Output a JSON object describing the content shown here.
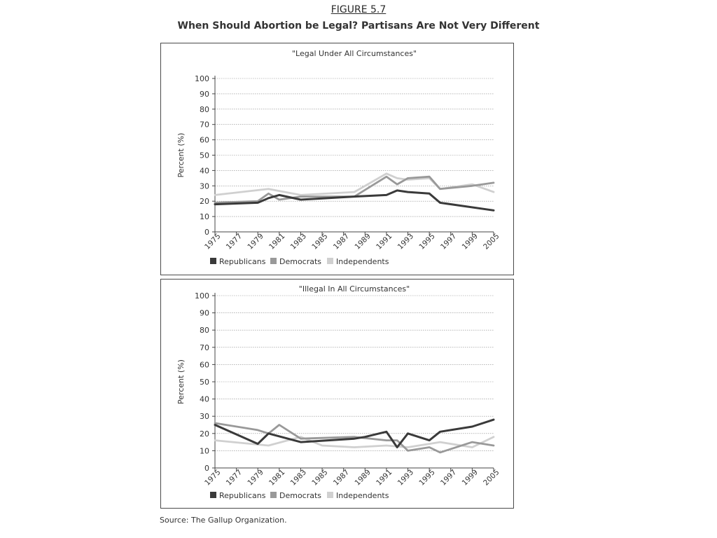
{
  "figure": {
    "label": "FIGURE 5.7",
    "title": "When Should Abortion be Legal? Partisans Are Not Very Different"
  },
  "source": "Source: The Gallup Organization.",
  "colors": {
    "Republicans": "#3a3a3a",
    "Democrats": "#999999",
    "Independents": "#d0d0d0",
    "grid": "#8a8a8a",
    "axis": "#444444"
  },
  "chart_data": [
    {
      "type": "line",
      "title": "\"Legal Under All Circumstances\"",
      "ylabel": "Percent (%)",
      "xlabel": "",
      "ylim": [
        0,
        100
      ],
      "yticks": [
        0,
        10,
        20,
        30,
        40,
        50,
        60,
        70,
        80,
        90,
        100
      ],
      "xticks": [
        "1975",
        "1977",
        "1979",
        "1981",
        "1983",
        "1985",
        "1987",
        "1989",
        "1991",
        "1993",
        "1995",
        "1997",
        "1999",
        "2005"
      ],
      "grid": true,
      "legend_position": "bottom",
      "series": [
        {
          "name": "Republicans",
          "x": [
            1975,
            1979,
            1980,
            1981,
            1983,
            1988,
            1991,
            1992,
            1993,
            1995,
            1996,
            2005
          ],
          "values": [
            18,
            19,
            22,
            24,
            21,
            23,
            24,
            27,
            26,
            25,
            19,
            14
          ]
        },
        {
          "name": "Democrats",
          "x": [
            1975,
            1979,
            1980,
            1981,
            1983,
            1988,
            1991,
            1992,
            1993,
            1995,
            1996,
            1999,
            2005
          ],
          "values": [
            19,
            20,
            25,
            21,
            23,
            23,
            36,
            31,
            35,
            36,
            28,
            30,
            32
          ]
        },
        {
          "name": "Independents",
          "x": [
            1975,
            1980,
            1983,
            1988,
            1991,
            1992,
            1993,
            1995,
            1996,
            1999,
            2005
          ],
          "values": [
            24,
            28,
            24,
            26,
            38,
            35,
            34,
            35,
            28,
            31,
            26
          ]
        }
      ]
    },
    {
      "type": "line",
      "title": "\"Illegal In All Circumstances\"",
      "ylabel": "Percent (%)",
      "xlabel": "",
      "ylim": [
        0,
        100
      ],
      "yticks": [
        0,
        10,
        20,
        30,
        40,
        50,
        60,
        70,
        80,
        90,
        100
      ],
      "xticks": [
        "1975",
        "1977",
        "1979",
        "1981",
        "1983",
        "1985",
        "1987",
        "1989",
        "1991",
        "1993",
        "1995",
        "1997",
        "1999",
        "2005"
      ],
      "grid": true,
      "legend_position": "bottom",
      "series": [
        {
          "name": "Republicans",
          "x": [
            1975,
            1979,
            1980,
            1983,
            1988,
            1989,
            1991,
            1992,
            1993,
            1995,
            1996,
            1999,
            2005
          ],
          "values": [
            25,
            14,
            20,
            15,
            17,
            18,
            21,
            12,
            20,
            16,
            21,
            24,
            28
          ]
        },
        {
          "name": "Democrats",
          "x": [
            1975,
            1979,
            1980,
            1981,
            1983,
            1988,
            1991,
            1992,
            1993,
            1995,
            1996,
            1999,
            2005
          ],
          "values": [
            26,
            22,
            20,
            25,
            17,
            18,
            16,
            16,
            10,
            12,
            9,
            15,
            13
          ]
        },
        {
          "name": "Independents",
          "x": [
            1975,
            1980,
            1983,
            1985,
            1988,
            1991,
            1993,
            1995,
            1996,
            1999,
            2005
          ],
          "values": [
            16,
            13,
            18,
            13,
            12,
            13,
            12,
            14,
            15,
            12,
            18
          ]
        }
      ]
    }
  ]
}
